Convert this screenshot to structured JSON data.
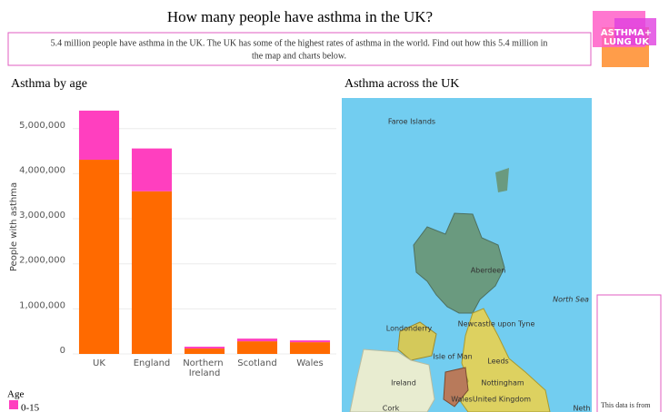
{
  "header": {
    "title": "How many people have asthma in the UK?",
    "intro": [
      "5.4 million people have asthma in the UK. The UK has some of the highest rates of asthma in the world. Find out how this 5.4 million in",
      "the map and charts below."
    ],
    "logo": [
      "ASTHMA+",
      "LUNG UK"
    ]
  },
  "chart_data": {
    "type": "stacked-bar",
    "title": "Asthma by age",
    "y_label": "People with asthma",
    "categories": [
      "UK",
      "England",
      "Northern Ireland",
      "Scotland",
      "Wales"
    ],
    "series": [
      {
        "color": "#ff6a00",
        "values": [
          4310000,
          3610000,
          120000,
          280000,
          260000
        ]
      },
      {
        "name": "0-15",
        "color": "#ff3fbf",
        "values": [
          1090000,
          950000,
          40000,
          60000,
          40000
        ]
      }
    ],
    "ylim": [
      0,
      5700000
    ],
    "yticks": [
      0,
      {
        "value": 1000000,
        "label": "1,000,000"
      },
      {
        "value": 2000000,
        "label": "2,000,000"
      },
      {
        "value": 3000000,
        "label": "3,000,000"
      },
      {
        "value": 4000000,
        "label": "4,000,000"
      },
      {
        "value": 5000000,
        "label": "5,000,000"
      }
    ],
    "grid": true,
    "legend_title": "Age"
  },
  "map": {
    "title": "Asthma across the UK",
    "labels": [
      "Faroe Islands",
      "Aberdeen",
      "North Sea",
      "Londonderry",
      "Newcastle upon Tyne",
      "Isle of Man",
      "Leeds",
      "Ireland",
      "Nottingham",
      "United Kingdom",
      "Wales",
      "Cork",
      "Neth"
    ]
  },
  "sidebar": {
    "note": "This data is from"
  }
}
